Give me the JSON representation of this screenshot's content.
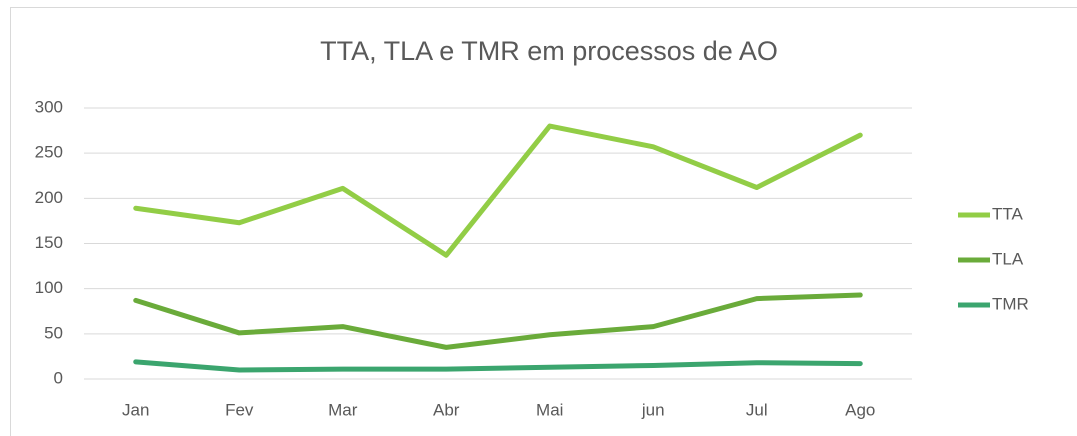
{
  "chart_data": {
    "type": "line",
    "title": "TTA, TLA e TMR em processos de AO",
    "categories": [
      "Jan",
      "Fev",
      "Mar",
      "Abr",
      "Mai",
      "jun",
      "Jul",
      "Ago"
    ],
    "series": [
      {
        "name": "TTA",
        "color": "#92cd46",
        "values": [
          189,
          173,
          211,
          137,
          280,
          257,
          212,
          270
        ]
      },
      {
        "name": "TLA",
        "color": "#6aab3a",
        "values": [
          87,
          51,
          58,
          35,
          49,
          58,
          89,
          93
        ]
      },
      {
        "name": "TMR",
        "color": "#3ba56e",
        "values": [
          19,
          10,
          11,
          11,
          13,
          15,
          18,
          17
        ]
      }
    ],
    "ylim": [
      0,
      300
    ],
    "yticks": [
      0,
      50,
      100,
      150,
      200,
      250,
      300
    ],
    "grid": true,
    "legend": "right"
  }
}
